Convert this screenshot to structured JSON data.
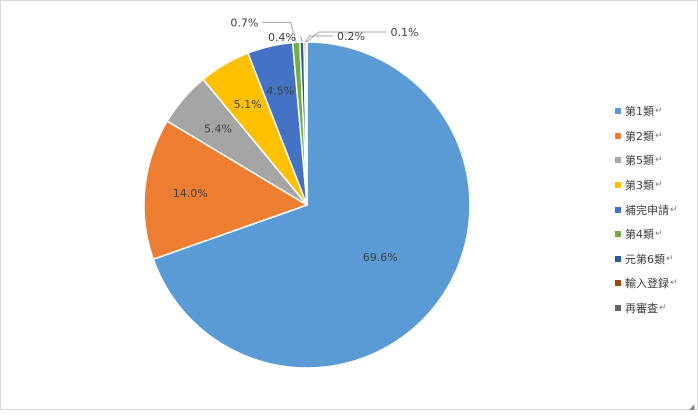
{
  "chart_data": {
    "type": "pie",
    "title": "",
    "categories": [
      "第1類",
      "第2類",
      "第5類",
      "第3類",
      "補完申請",
      "第4類",
      "元第6類",
      "輸入登録",
      "再審査"
    ],
    "values": [
      69.6,
      14.0,
      5.4,
      5.1,
      4.5,
      0.7,
      0.4,
      0.2,
      0.1
    ],
    "labels": [
      "69.6%",
      "14.0%",
      "5.4%",
      "5.1%",
      "4.5%",
      "0.7%",
      "0.4%",
      "0.2%",
      "0.1%"
    ],
    "colors": [
      "#5b9bd5",
      "#ed7d31",
      "#a5a5a5",
      "#ffc000",
      "#4472c4",
      "#70ad47",
      "#255e91",
      "#9e480e",
      "#636363"
    ],
    "legend_position": "right"
  },
  "legend": {
    "paragraph_mark": "↵",
    "items": [
      {
        "label": "第1類",
        "color": "#5b9bd5"
      },
      {
        "label": "第2類",
        "color": "#ed7d31"
      },
      {
        "label": "第5類",
        "color": "#a5a5a5"
      },
      {
        "label": "第3類",
        "color": "#ffc000"
      },
      {
        "label": "補完申請",
        "color": "#4472c4"
      },
      {
        "label": "第4類",
        "color": "#70ad47"
      },
      {
        "label": "元第6類",
        "color": "#255e91"
      },
      {
        "label": "輸入登録",
        "color": "#9e480e"
      },
      {
        "label": "再審査",
        "color": "#636363"
      }
    ]
  },
  "resize_mark": "◢"
}
